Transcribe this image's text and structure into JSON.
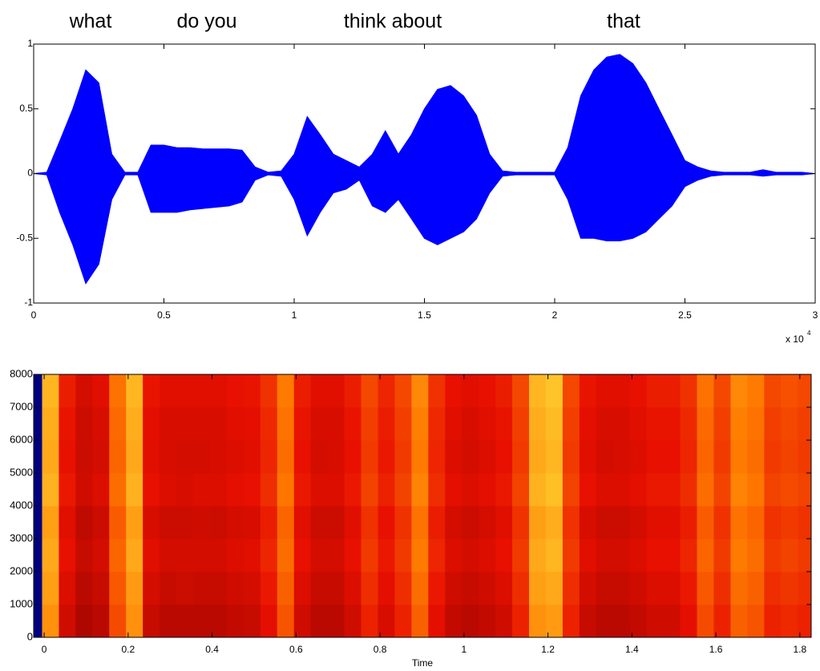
{
  "chart_data": [
    {
      "type": "area",
      "annotations": [
        "what",
        "do you",
        "think about",
        "that"
      ],
      "x": [
        0,
        500,
        1000,
        1500,
        2000,
        2500,
        3000,
        3500,
        4000,
        4500,
        5000,
        5500,
        6000,
        6500,
        7000,
        7500,
        8000,
        8500,
        9000,
        9500,
        10000,
        10500,
        11000,
        11500,
        12000,
        12500,
        13000,
        13500,
        14000,
        14500,
        15000,
        15500,
        16000,
        16500,
        17000,
        17500,
        18000,
        18500,
        19000,
        19500,
        20000,
        20500,
        21000,
        21500,
        22000,
        22500,
        23000,
        23500,
        24000,
        24500,
        25000,
        25500,
        26000,
        26500,
        27000,
        27500,
        28000,
        28500,
        29000,
        29500,
        30000
      ],
      "series": [
        {
          "color": "#0000ff",
          "values": [
            0,
            0.01,
            0.25,
            0.5,
            0.8,
            0.7,
            0.15,
            0.01,
            0.01,
            0.22,
            0.22,
            0.2,
            0.2,
            0.19,
            0.19,
            0.19,
            0.18,
            0.05,
            0.01,
            0.02,
            0.15,
            0.44,
            0.3,
            0.15,
            0.1,
            0.05,
            0.15,
            0.33,
            0.15,
            0.3,
            0.5,
            0.65,
            0.68,
            0.6,
            0.45,
            0.15,
            0.02,
            0.01,
            0.01,
            0.01,
            0.01,
            0.2,
            0.6,
            0.8,
            0.9,
            0.92,
            0.85,
            0.7,
            0.5,
            0.3,
            0.1,
            0.05,
            0.02,
            0.01,
            0.01,
            0.01,
            0.03,
            0.01,
            0.01,
            0.01,
            0
          ]
        },
        {
          "color": "#0000ff",
          "values": [
            0,
            -0.01,
            -0.3,
            -0.55,
            -0.85,
            -0.7,
            -0.2,
            -0.01,
            -0.01,
            -0.3,
            -0.3,
            -0.3,
            -0.28,
            -0.27,
            -0.26,
            -0.25,
            -0.22,
            -0.05,
            -0.01,
            -0.02,
            -0.2,
            -0.48,
            -0.3,
            -0.15,
            -0.12,
            -0.05,
            -0.25,
            -0.3,
            -0.2,
            -0.35,
            -0.5,
            -0.55,
            -0.5,
            -0.45,
            -0.35,
            -0.15,
            -0.02,
            -0.01,
            -0.01,
            -0.01,
            -0.01,
            -0.2,
            -0.5,
            -0.5,
            -0.52,
            -0.52,
            -0.5,
            -0.45,
            -0.35,
            -0.25,
            -0.1,
            -0.05,
            -0.02,
            -0.01,
            -0.01,
            -0.01,
            -0.02,
            -0.01,
            -0.01,
            -0.01,
            0
          ]
        }
      ],
      "xlim": [
        0,
        30000
      ],
      "xticks": [
        0,
        {
          "value": 5000,
          "label": "0.5"
        },
        {
          "value": 10000,
          "label": "1"
        },
        {
          "value": 15000,
          "label": "1.5"
        },
        {
          "value": 20000,
          "label": "2"
        },
        {
          "value": 25000,
          "label": "2.5"
        },
        {
          "value": 30000,
          "label": "3"
        }
      ],
      "x_multiplier": "x 10",
      "x_exponent": "4",
      "ylim": [
        -1,
        1
      ],
      "yticks": [
        -1,
        -0.5,
        0,
        0.5,
        1
      ]
    },
    {
      "type": "heatmap",
      "xlabel": "Time",
      "xlim": [
        -0.025,
        1.827
      ],
      "xticks": [
        0,
        0.2,
        0.4,
        0.6,
        0.8,
        1,
        1.2,
        1.4,
        1.6,
        1.8
      ],
      "ylim": [
        0,
        8000
      ],
      "yticks": [
        0,
        1000,
        2000,
        3000,
        4000,
        5000,
        6000,
        7000,
        8000
      ],
      "clim": [
        0,
        1
      ],
      "colormap": [
        "#00007f",
        "#7f0000",
        "#e81000",
        "#ff7a00",
        "#ffee40"
      ],
      "x_edges": [
        -0.025,
        -0.005,
        0.035,
        0.075,
        0.115,
        0.155,
        0.195,
        0.235,
        0.275,
        0.315,
        0.355,
        0.395,
        0.435,
        0.475,
        0.515,
        0.555,
        0.595,
        0.635,
        0.675,
        0.715,
        0.755,
        0.795,
        0.835,
        0.875,
        0.915,
        0.955,
        0.995,
        1.035,
        1.075,
        1.115,
        1.155,
        1.195,
        1.235,
        1.275,
        1.315,
        1.355,
        1.395,
        1.435,
        1.475,
        1.515,
        1.555,
        1.595,
        1.635,
        1.675,
        1.715,
        1.755,
        1.795,
        1.827
      ],
      "y_edges": [
        0,
        1000,
        2000,
        3000,
        4000,
        5000,
        6000,
        7000,
        8000
      ],
      "z": [
        [
          0,
          0.8,
          0.44,
          0.36,
          0.39,
          0.64,
          0.8,
          0.42,
          0.39,
          0.39,
          0.39,
          0.39,
          0.41,
          0.42,
          0.49,
          0.66,
          0.44,
          0.39,
          0.39,
          0.44,
          0.54,
          0.46,
          0.54,
          0.69,
          0.49,
          0.41,
          0.39,
          0.41,
          0.44,
          0.54,
          0.8,
          0.82,
          0.54,
          0.42,
          0.39,
          0.39,
          0.41,
          0.44,
          0.44,
          0.49,
          0.64,
          0.54,
          0.69,
          0.66,
          0.54,
          0.56,
          0.54
        ],
        [
          0,
          0.83,
          0.47,
          0.39,
          0.42,
          0.67,
          0.82,
          0.45,
          0.42,
          0.43,
          0.42,
          0.42,
          0.44,
          0.45,
          0.52,
          0.69,
          0.47,
          0.42,
          0.42,
          0.47,
          0.57,
          0.49,
          0.57,
          0.72,
          0.52,
          0.44,
          0.42,
          0.44,
          0.47,
          0.57,
          0.83,
          0.85,
          0.57,
          0.45,
          0.42,
          0.42,
          0.44,
          0.47,
          0.47,
          0.52,
          0.67,
          0.57,
          0.72,
          0.69,
          0.57,
          0.59,
          0.57
        ],
        [
          0,
          0.85,
          0.5,
          0.42,
          0.45,
          0.7,
          0.85,
          0.48,
          0.45,
          0.45,
          0.45,
          0.45,
          0.47,
          0.48,
          0.55,
          0.72,
          0.5,
          0.45,
          0.45,
          0.5,
          0.6,
          0.52,
          0.6,
          0.75,
          0.55,
          0.47,
          0.45,
          0.47,
          0.5,
          0.6,
          0.85,
          0.88,
          0.6,
          0.48,
          0.45,
          0.45,
          0.47,
          0.5,
          0.5,
          0.55,
          0.7,
          0.6,
          0.75,
          0.72,
          0.6,
          0.62,
          0.6
        ],
        [
          0,
          0.83,
          0.48,
          0.4,
          0.43,
          0.68,
          0.83,
          0.46,
          0.43,
          0.43,
          0.44,
          0.43,
          0.45,
          0.46,
          0.53,
          0.7,
          0.48,
          0.43,
          0.43,
          0.48,
          0.58,
          0.5,
          0.58,
          0.73,
          0.53,
          0.45,
          0.43,
          0.45,
          0.48,
          0.58,
          0.83,
          0.86,
          0.58,
          0.46,
          0.43,
          0.43,
          0.45,
          0.48,
          0.48,
          0.53,
          0.68,
          0.58,
          0.73,
          0.7,
          0.58,
          0.6,
          0.58
        ],
        [
          0,
          0.87,
          0.52,
          0.44,
          0.47,
          0.72,
          0.87,
          0.5,
          0.47,
          0.46,
          0.47,
          0.47,
          0.49,
          0.5,
          0.57,
          0.74,
          0.52,
          0.47,
          0.47,
          0.52,
          0.62,
          0.54,
          0.62,
          0.77,
          0.57,
          0.49,
          0.47,
          0.49,
          0.52,
          0.62,
          0.87,
          0.9,
          0.62,
          0.5,
          0.47,
          0.47,
          0.49,
          0.52,
          0.52,
          0.57,
          0.72,
          0.62,
          0.77,
          0.74,
          0.62,
          0.64,
          0.62
        ],
        [
          0,
          0.85,
          0.5,
          0.43,
          0.45,
          0.7,
          0.85,
          0.48,
          0.46,
          0.45,
          0.45,
          0.46,
          0.47,
          0.48,
          0.55,
          0.72,
          0.5,
          0.45,
          0.46,
          0.5,
          0.6,
          0.52,
          0.6,
          0.75,
          0.55,
          0.47,
          0.45,
          0.47,
          0.5,
          0.6,
          0.85,
          0.88,
          0.6,
          0.48,
          0.45,
          0.46,
          0.47,
          0.5,
          0.5,
          0.55,
          0.7,
          0.6,
          0.75,
          0.72,
          0.6,
          0.62,
          0.6
        ],
        [
          0,
          0.86,
          0.51,
          0.43,
          0.46,
          0.71,
          0.86,
          0.49,
          0.46,
          0.46,
          0.46,
          0.46,
          0.48,
          0.49,
          0.56,
          0.73,
          0.51,
          0.46,
          0.46,
          0.51,
          0.61,
          0.53,
          0.61,
          0.76,
          0.56,
          0.48,
          0.46,
          0.48,
          0.51,
          0.61,
          0.86,
          0.89,
          0.61,
          0.49,
          0.46,
          0.46,
          0.48,
          0.51,
          0.51,
          0.56,
          0.71,
          0.61,
          0.76,
          0.73,
          0.61,
          0.63,
          0.61
        ],
        [
          0,
          0.88,
          0.53,
          0.45,
          0.48,
          0.73,
          0.88,
          0.51,
          0.48,
          0.48,
          0.48,
          0.48,
          0.5,
          0.51,
          0.58,
          0.75,
          0.53,
          0.48,
          0.48,
          0.53,
          0.63,
          0.55,
          0.63,
          0.78,
          0.58,
          0.5,
          0.48,
          0.5,
          0.53,
          0.63,
          0.88,
          0.91,
          0.63,
          0.51,
          0.48,
          0.48,
          0.5,
          0.53,
          0.53,
          0.58,
          0.73,
          0.63,
          0.78,
          0.75,
          0.63,
          0.65,
          0.63
        ]
      ]
    }
  ]
}
